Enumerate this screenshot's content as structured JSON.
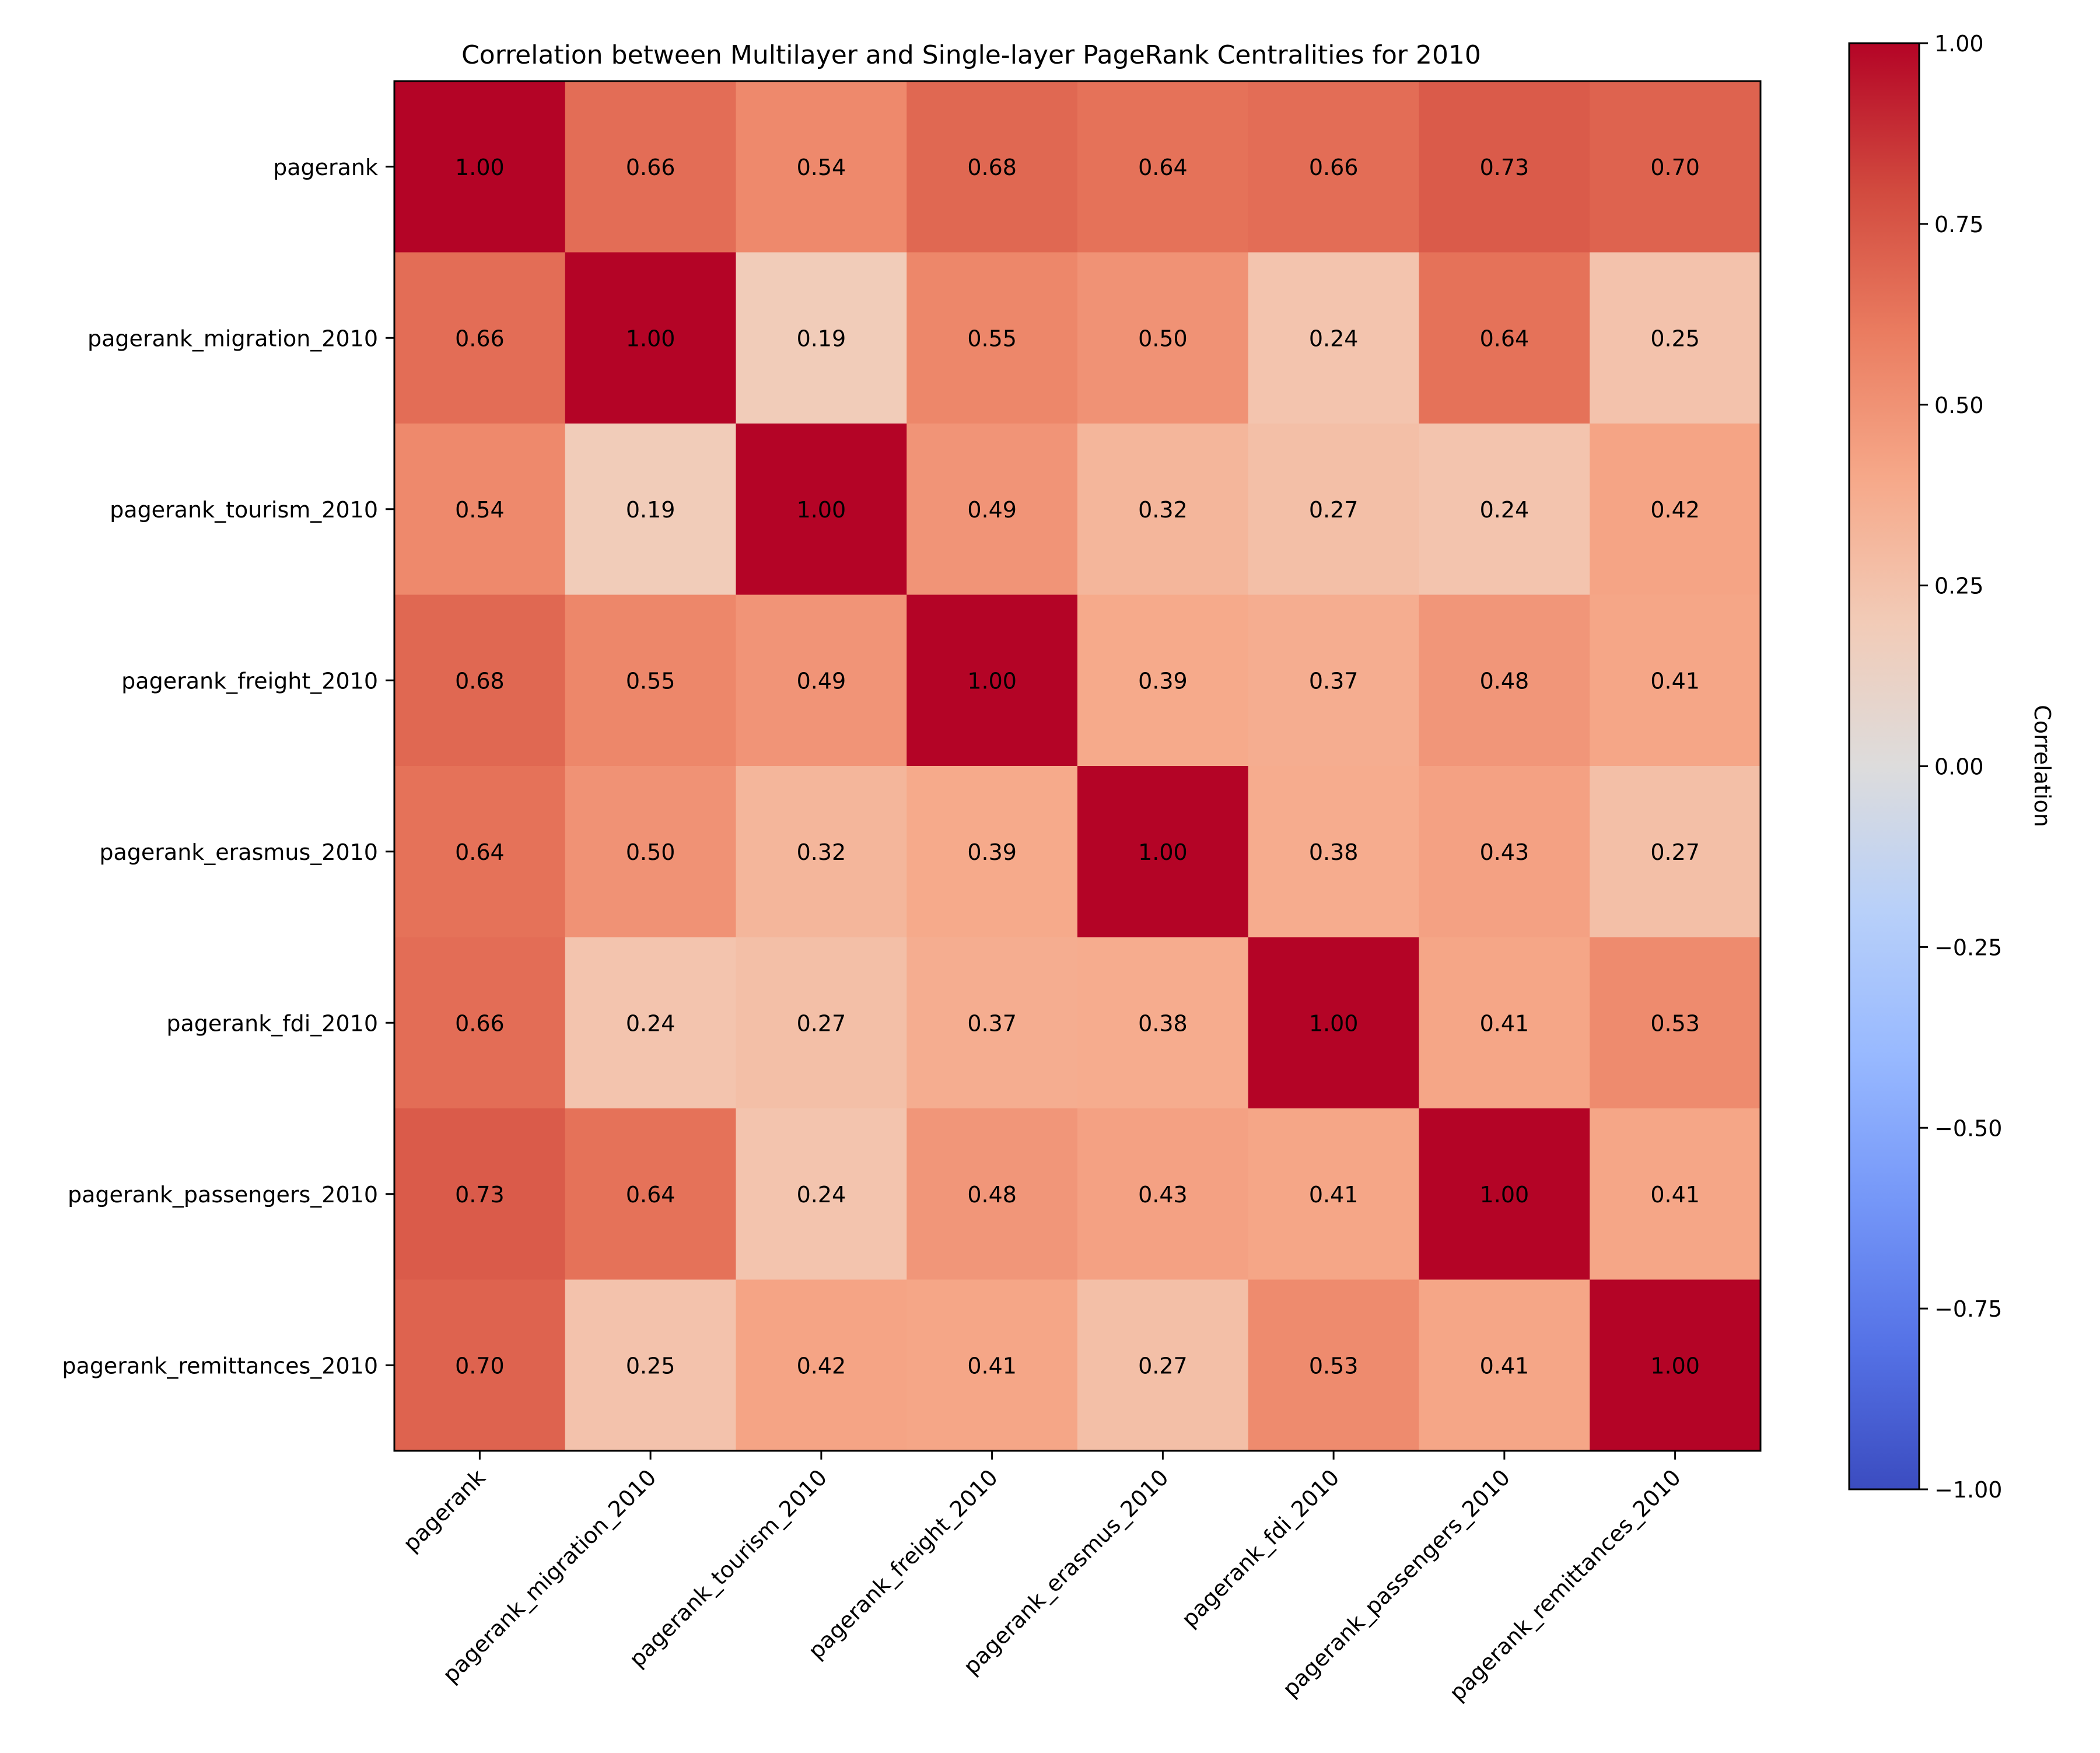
{
  "chart_data": {
    "type": "heatmap",
    "title": "Correlation between Multilayer and Single-layer PageRank Centralities for 2010",
    "xlabel": "",
    "ylabel": "",
    "row_labels": [
      "pagerank",
      "pagerank_migration_2010",
      "pagerank_tourism_2010",
      "pagerank_freight_2010",
      "pagerank_erasmus_2010",
      "pagerank_fdi_2010",
      "pagerank_passengers_2010",
      "pagerank_remittances_2010"
    ],
    "col_labels": [
      "pagerank",
      "pagerank_migration_2010",
      "pagerank_tourism_2010",
      "pagerank_freight_2010",
      "pagerank_erasmus_2010",
      "pagerank_fdi_2010",
      "pagerank_passengers_2010",
      "pagerank_remittances_2010"
    ],
    "values": [
      [
        1.0,
        0.66,
        0.54,
        0.68,
        0.64,
        0.66,
        0.73,
        0.7
      ],
      [
        0.66,
        1.0,
        0.19,
        0.55,
        0.5,
        0.24,
        0.64,
        0.25
      ],
      [
        0.54,
        0.19,
        1.0,
        0.49,
        0.32,
        0.27,
        0.24,
        0.42
      ],
      [
        0.68,
        0.55,
        0.49,
        1.0,
        0.39,
        0.37,
        0.48,
        0.41
      ],
      [
        0.64,
        0.5,
        0.32,
        0.39,
        1.0,
        0.38,
        0.43,
        0.27
      ],
      [
        0.66,
        0.24,
        0.27,
        0.37,
        0.38,
        1.0,
        0.41,
        0.53
      ],
      [
        0.73,
        0.64,
        0.24,
        0.48,
        0.43,
        0.41,
        1.0,
        0.41
      ],
      [
        0.7,
        0.25,
        0.42,
        0.41,
        0.27,
        0.53,
        0.41,
        1.0
      ]
    ],
    "value_format_decimals": 2,
    "colormap": "coolwarm",
    "vmin": -1.0,
    "vmax": 1.0,
    "colorbar": {
      "label": "Correlation",
      "ticks": [
        1.0,
        0.75,
        0.5,
        0.25,
        0.0,
        -0.25,
        -0.5,
        -0.75,
        -1.0
      ],
      "tick_labels": [
        "1.00",
        "0.75",
        "0.50",
        "0.25",
        "0.00",
        "−0.25",
        "−0.50",
        "−0.75",
        "−1.00"
      ]
    }
  }
}
